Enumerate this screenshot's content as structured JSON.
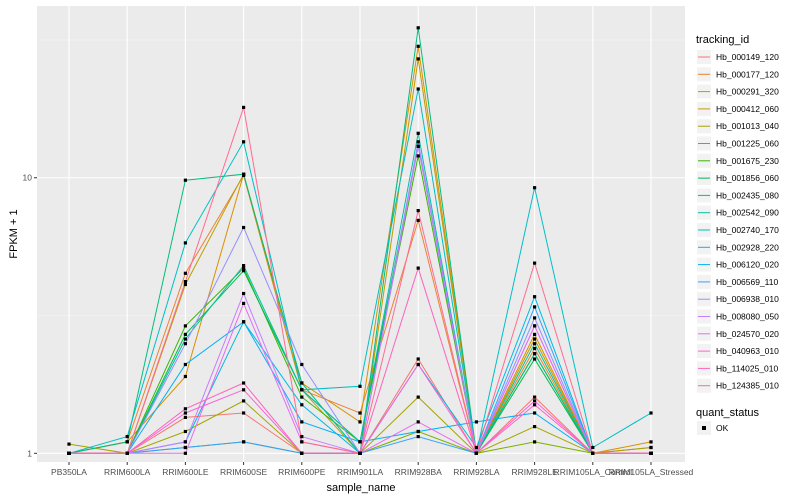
{
  "chart_data": {
    "type": "line",
    "xlabel": "sample_name",
    "ylabel": "FPKM + 1",
    "y_scale": "log10",
    "ylim": [
      0.93,
      42
    ],
    "y_ticks": [
      1,
      10
    ],
    "grid": true,
    "legend_position": "right",
    "categories": [
      "PB350LA",
      "RRIM600LA",
      "RRIM600LE",
      "RRIM600SE",
      "RRIM600PE",
      "RRIM901LA",
      "RRIM928BA",
      "RRIM928LA",
      "RRIM928LE",
      "RRIM105LA_Control",
      "RRIM105LA_Stressed"
    ],
    "legend_title": "tracking_id",
    "series": [
      {
        "name": "Hb_000149_120",
        "color": "#F8766D",
        "values": [
          1.0,
          1.0,
          1.35,
          1.4,
          1.0,
          1.0,
          2.2,
          1.0,
          1.6,
          1.0,
          1.0
        ]
      },
      {
        "name": "Hb_000177_120",
        "color": "#EA8331",
        "values": [
          1.0,
          1.1,
          4.5,
          10.2,
          1.7,
          1.4,
          7.0,
          1.0,
          2.4,
          1.0,
          1.05
        ]
      },
      {
        "name": "Hb_000291_320",
        "color": "#D89000",
        "values": [
          1.0,
          1.1,
          1.9,
          10.3,
          1.8,
          1.3,
          30.0,
          1.0,
          2.7,
          1.0,
          1.1
        ]
      },
      {
        "name": "Hb_000412_060",
        "color": "#C09B00",
        "values": [
          1.0,
          1.0,
          4.1,
          10.3,
          1.7,
          1.0,
          27.0,
          1.0,
          2.6,
          1.0,
          1.0
        ]
      },
      {
        "name": "Hb_001013_040",
        "color": "#A3A500",
        "values": [
          1.08,
          1.0,
          1.2,
          1.55,
          1.0,
          1.0,
          1.6,
          1.0,
          1.25,
          1.0,
          1.05
        ]
      },
      {
        "name": "Hb_001225_060",
        "color": "#7CAE00",
        "values": [
          1.0,
          1.0,
          1.05,
          1.1,
          1.0,
          1.0,
          1.2,
          1.0,
          1.1,
          1.0,
          1.0
        ]
      },
      {
        "name": "Hb_001675_230",
        "color": "#39B600",
        "values": [
          1.0,
          1.0,
          2.9,
          4.7,
          1.6,
          1.1,
          12.0,
          1.0,
          2.3,
          1.0,
          1.0
        ]
      },
      {
        "name": "Hb_001856_060",
        "color": "#00BB4E",
        "values": [
          1.0,
          1.0,
          2.7,
          4.6,
          1.7,
          1.1,
          13.0,
          1.0,
          2.2,
          1.0,
          1.0
        ]
      },
      {
        "name": "Hb_002435_080",
        "color": "#00BF7D",
        "values": [
          1.0,
          1.1,
          9.8,
          10.3,
          1.8,
          1.0,
          35.0,
          1.0,
          2.3,
          1.0,
          1.0
        ]
      },
      {
        "name": "Hb_002542_090",
        "color": "#00C1A3",
        "values": [
          1.0,
          1.0,
          2.6,
          4.8,
          1.7,
          1.1,
          14.5,
          1.0,
          2.5,
          1.0,
          1.0
        ]
      },
      {
        "name": "Hb_002740_170",
        "color": "#00BFC4",
        "values": [
          1.0,
          1.15,
          5.8,
          13.5,
          1.7,
          1.75,
          21.0,
          1.0,
          9.2,
          1.05,
          1.4
        ]
      },
      {
        "name": "Hb_002928_220",
        "color": "#00BAE0",
        "values": [
          1.0,
          1.0,
          1.1,
          3.0,
          1.5,
          1.0,
          2.1,
          1.05,
          3.7,
          1.0,
          1.0
        ]
      },
      {
        "name": "Hb_006120_020",
        "color": "#00B0F6",
        "values": [
          1.0,
          1.0,
          2.1,
          3.0,
          1.3,
          1.1,
          1.2,
          1.3,
          1.4,
          1.0,
          1.0
        ]
      },
      {
        "name": "Hb_006569_110",
        "color": "#35A2FF",
        "values": [
          1.0,
          1.0,
          1.05,
          1.1,
          1.0,
          1.0,
          1.15,
          1.0,
          3.4,
          1.0,
          1.0
        ]
      },
      {
        "name": "Hb_006938_010",
        "color": "#9590FF",
        "values": [
          1.0,
          1.0,
          2.5,
          6.6,
          2.1,
          1.0,
          13.5,
          1.0,
          3.1,
          1.0,
          1.0
        ]
      },
      {
        "name": "Hb_008080_050",
        "color": "#C77CFF",
        "values": [
          1.0,
          1.0,
          1.1,
          3.8,
          1.15,
          1.0,
          13.0,
          1.0,
          2.9,
          1.0,
          1.0
        ]
      },
      {
        "name": "Hb_024570_020",
        "color": "#E76BF3",
        "values": [
          1.0,
          1.0,
          1.0,
          3.5,
          1.1,
          1.0,
          1.3,
          1.0,
          2.9,
          1.0,
          1.0
        ]
      },
      {
        "name": "Hb_040963_010",
        "color": "#FA62DB",
        "values": [
          1.0,
          1.0,
          1.4,
          1.7,
          1.0,
          1.0,
          2.1,
          1.0,
          1.55,
          1.0,
          1.0
        ]
      },
      {
        "name": "Hb_114025_010",
        "color": "#FF62BC",
        "values": [
          1.0,
          1.0,
          1.45,
          1.8,
          1.0,
          1.0,
          4.7,
          1.0,
          1.5,
          1.0,
          1.0
        ]
      },
      {
        "name": "Hb_124385_010",
        "color": "#FF6C91",
        "values": [
          1.0,
          1.0,
          4.2,
          18.0,
          1.1,
          1.0,
          7.6,
          1.0,
          4.9,
          1.0,
          1.0
        ]
      }
    ],
    "shape_legend": {
      "title": "quant_status",
      "label": "OK"
    }
  }
}
